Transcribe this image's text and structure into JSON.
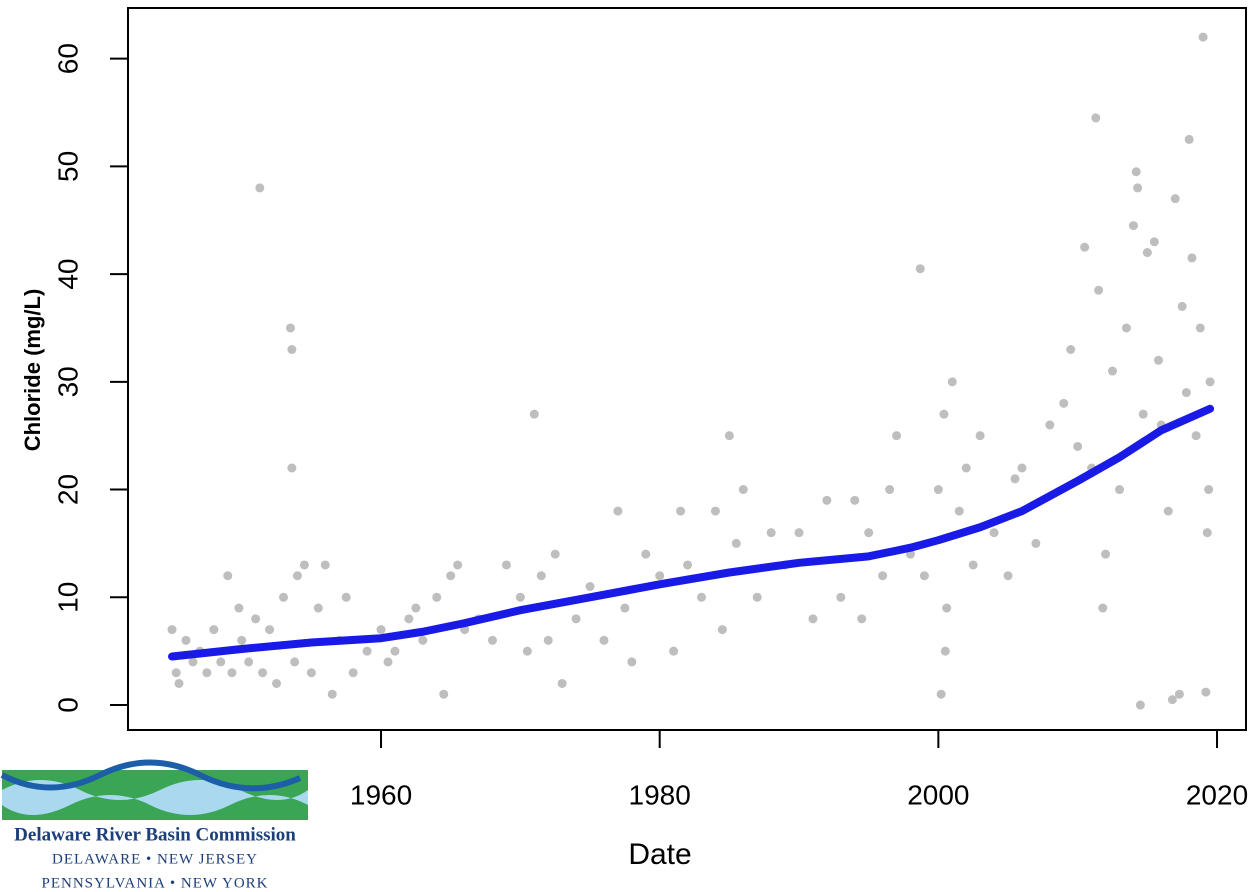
{
  "chart_data": {
    "type": "scatter",
    "x_label": "Date",
    "y_label": "Chloride (mg/L)",
    "xlim": [
      1941.84,
      2022.08
    ],
    "ylim": [
      -2.32,
      64.7
    ],
    "xticks": [
      1960,
      1980,
      2000,
      2020
    ],
    "yticks": [
      0,
      10,
      20,
      30,
      40,
      50,
      60
    ],
    "grid": false,
    "points": {
      "color": "#bebebe",
      "x": [
        1945,
        1945.3,
        1945.5,
        1946,
        1946.5,
        1947,
        1947.5,
        1948,
        1948.5,
        1949,
        1949.3,
        1949.8,
        1950,
        1950.5,
        1951,
        1951.3,
        1951.5,
        1952,
        1952.5,
        1953,
        1953.5,
        1953.6,
        1953.6,
        1953.8,
        1954,
        1954.5,
        1955,
        1955.5,
        1956,
        1956.5,
        1957,
        1957.5,
        1958,
        1959,
        1960,
        1960.5,
        1961,
        1962,
        1962.5,
        1963,
        1964,
        1964.5,
        1965,
        1965.5,
        1966,
        1967,
        1968,
        1969,
        1970,
        1970.5,
        1971,
        1971.5,
        1972,
        1972.5,
        1973,
        1974,
        1975,
        1976,
        1977,
        1977.5,
        1978,
        1979,
        1980,
        1981,
        1981.5,
        1982,
        1983,
        1984,
        1984.5,
        1985,
        1985.5,
        1986,
        1987,
        1988,
        1989,
        1990,
        1991,
        1992,
        1993,
        1994,
        1994.5,
        1995,
        1996,
        1996.5,
        1997,
        1998,
        1998.7,
        1999,
        2000,
        2000.2,
        2000.4,
        2000.5,
        2000.6,
        2001,
        2001.5,
        2002,
        2002.5,
        2003,
        2004,
        2005,
        2005.5,
        2006,
        2007,
        2008,
        2009,
        2009.5,
        2010,
        2010.5,
        2011,
        2011.3,
        2011.5,
        2011.8,
        2012,
        2012.5,
        2013,
        2013.5,
        2014,
        2014.2,
        2014.3,
        2014.5,
        2014.7,
        2015,
        2015.5,
        2015.8,
        2016,
        2016.5,
        2016.8,
        2017,
        2017.3,
        2017.5,
        2017.8,
        2018,
        2018.2,
        2018.5,
        2018.8,
        2019,
        2019.2,
        2019.4,
        2019.5,
        2019.3
      ],
      "y": [
        7,
        3,
        2,
        6,
        4,
        5,
        3,
        7,
        4,
        12,
        3,
        9,
        6,
        4,
        8,
        48,
        3,
        7,
        2,
        10,
        35,
        33,
        22,
        4,
        12,
        13,
        3,
        9,
        13,
        1,
        6,
        10,
        3,
        5,
        7,
        4,
        5,
        8,
        9,
        6,
        10,
        1,
        12,
        13,
        7,
        8,
        6,
        13,
        10,
        5,
        27,
        12,
        6,
        14,
        2,
        8,
        11,
        6,
        18,
        9,
        4,
        14,
        12,
        5,
        18,
        13,
        10,
        18,
        7,
        25,
        15,
        20,
        10,
        16,
        13,
        16,
        8,
        19,
        10,
        19,
        8,
        16,
        12,
        20,
        25,
        14,
        40.5,
        12,
        20,
        1,
        27,
        5,
        9,
        30,
        18,
        22,
        13,
        25,
        16,
        12,
        21,
        22,
        15,
        26,
        28,
        33,
        24,
        42.5,
        22,
        54.5,
        38.5,
        9,
        14,
        31,
        20,
        35,
        44.5,
        49.5,
        48,
        0,
        27,
        42,
        43,
        32,
        26,
        18,
        0.5,
        47,
        1,
        37,
        29,
        52.5,
        41.5,
        25,
        35,
        62,
        1.2,
        20,
        30,
        16
      ]
    },
    "trend": {
      "color": "#1a1ae6",
      "x": [
        1945,
        1950,
        1955,
        1960,
        1963,
        1966,
        1970,
        1975,
        1980,
        1985,
        1990,
        1995,
        1998,
        2000,
        2003,
        2006,
        2010,
        2013,
        2016,
        2019.5
      ],
      "y": [
        4.5,
        5.2,
        5.8,
        6.2,
        6.8,
        7.6,
        8.8,
        10,
        11.2,
        12.3,
        13.2,
        13.8,
        14.6,
        15.3,
        16.5,
        18,
        20.8,
        23,
        25.5,
        27.5
      ]
    }
  },
  "logo": {
    "name": "Delaware River Basin Commission",
    "line1": "DELAWARE  •  NEW JERSEY",
    "line2": "PENNSYLVANIA  •  NEW YORK"
  }
}
